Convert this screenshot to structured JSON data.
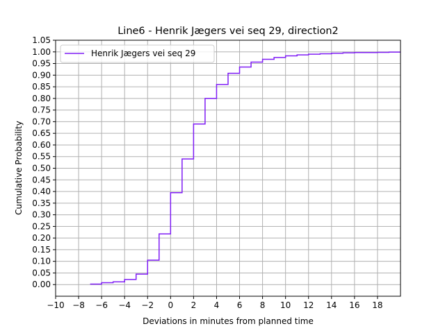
{
  "chart_data": {
    "type": "line",
    "title": "Line6 - Henrik Jægers vei seq 29, direction2",
    "xlabel": "Deviations in minutes from planned time",
    "ylabel": "Cumulative Probability",
    "xlim": [
      -10,
      20
    ],
    "ylim": [
      -0.05,
      1.05
    ],
    "xticks": [
      -10,
      -8,
      -6,
      -4,
      -2,
      0,
      2,
      4,
      6,
      8,
      10,
      12,
      14,
      16,
      18
    ],
    "yticks": [
      0.0,
      0.05,
      0.1,
      0.15,
      0.2,
      0.25,
      0.3,
      0.35,
      0.4,
      0.45,
      0.5,
      0.55,
      0.6,
      0.65,
      0.7,
      0.75,
      0.8,
      0.85,
      0.9,
      0.95,
      1.0,
      1.05
    ],
    "grid": true,
    "legend_position": "upper-left",
    "step_style": "step-post",
    "series": [
      {
        "name": "Henrik Jægers vei seq 29",
        "color": "#7f1cf5",
        "x": [
          -7,
          -6,
          -5,
          -4,
          -3,
          -2,
          -1,
          0,
          1,
          2,
          3,
          4,
          5,
          6,
          7,
          8,
          9,
          10,
          11,
          12,
          13,
          14,
          15,
          16,
          17,
          18,
          19,
          20
        ],
        "y": [
          0.002,
          0.008,
          0.012,
          0.022,
          0.045,
          0.105,
          0.218,
          0.395,
          0.54,
          0.69,
          0.8,
          0.86,
          0.908,
          0.935,
          0.956,
          0.968,
          0.976,
          0.983,
          0.987,
          0.99,
          0.992,
          0.994,
          0.996,
          0.997,
          0.997,
          0.998,
          0.999,
          1.0
        ]
      }
    ]
  }
}
